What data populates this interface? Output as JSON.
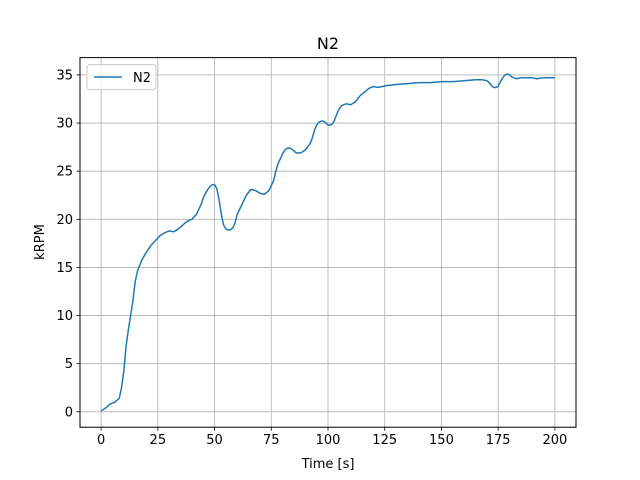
{
  "chart_data": {
    "type": "line",
    "title": "N2",
    "xlabel": "Time [s]",
    "ylabel": "kRPM",
    "xlim": [
      -9.3,
      209.3
    ],
    "ylim": [
      -1.6,
      36.8
    ],
    "xticks": [
      0,
      25,
      50,
      75,
      100,
      125,
      150,
      175,
      200
    ],
    "xtick_labels": [
      "0",
      "25",
      "50",
      "75",
      "100",
      "125",
      "150",
      "175",
      "200"
    ],
    "yticks": [
      0,
      5,
      10,
      15,
      20,
      25,
      30,
      35
    ],
    "ytick_labels": [
      "0",
      "5",
      "10",
      "15",
      "20",
      "25",
      "30",
      "35"
    ],
    "grid": true,
    "legend": "upper-left",
    "series": [
      {
        "name": "N2",
        "color": "#1f77b4",
        "x": [
          0,
          2,
          4,
          6,
          8,
          9,
          10,
          11,
          12,
          13,
          14,
          15,
          16,
          17,
          18,
          19,
          20,
          22,
          24,
          26,
          28,
          30,
          32,
          34,
          36,
          38,
          40,
          42,
          44,
          45,
          46,
          47,
          48,
          49,
          50,
          51,
          52,
          53,
          54,
          55,
          56,
          57,
          58,
          59,
          60,
          62,
          64,
          66,
          68,
          70,
          72,
          74,
          76,
          77,
          78,
          79,
          80,
          81,
          82,
          83,
          84,
          85,
          86,
          88,
          90,
          92,
          93,
          94,
          95,
          96,
          97,
          98,
          99,
          100,
          101,
          102,
          103,
          104,
          105,
          106,
          108,
          110,
          112,
          114,
          116,
          118,
          120,
          122,
          124,
          126,
          130,
          135,
          140,
          145,
          150,
          155,
          160,
          165,
          168,
          170,
          171,
          172,
          173,
          174,
          175,
          176,
          177,
          178,
          179,
          180,
          181,
          182,
          183,
          185,
          188,
          190,
          192,
          195,
          198,
          200
        ],
        "y": [
          0.1,
          0.4,
          0.8,
          1.0,
          1.4,
          2.5,
          4.2,
          6.8,
          8.5,
          10.0,
          11.5,
          13.5,
          14.6,
          15.2,
          15.8,
          16.2,
          16.6,
          17.3,
          17.8,
          18.3,
          18.6,
          18.8,
          18.7,
          19.0,
          19.4,
          19.8,
          20.0,
          20.5,
          21.5,
          22.2,
          22.7,
          23.1,
          23.4,
          23.6,
          23.6,
          23.2,
          22.0,
          20.5,
          19.4,
          19.0,
          18.9,
          18.9,
          19.1,
          19.6,
          20.5,
          21.5,
          22.5,
          23.1,
          23.0,
          22.7,
          22.6,
          23.0,
          24.0,
          25.0,
          25.8,
          26.3,
          26.8,
          27.2,
          27.4,
          27.4,
          27.3,
          27.1,
          26.9,
          26.9,
          27.2,
          27.8,
          28.4,
          29.2,
          29.8,
          30.1,
          30.2,
          30.2,
          30.0,
          29.8,
          29.8,
          29.9,
          30.4,
          31.0,
          31.5,
          31.8,
          32.0,
          31.9,
          32.2,
          32.8,
          33.2,
          33.6,
          33.8,
          33.7,
          33.8,
          33.9,
          34.0,
          34.1,
          34.2,
          34.2,
          34.3,
          34.3,
          34.4,
          34.5,
          34.5,
          34.4,
          34.2,
          33.9,
          33.7,
          33.7,
          33.8,
          34.3,
          34.7,
          35.0,
          35.1,
          35.0,
          34.8,
          34.7,
          34.6,
          34.7,
          34.7,
          34.7,
          34.6,
          34.7,
          34.7,
          34.7
        ]
      }
    ]
  }
}
